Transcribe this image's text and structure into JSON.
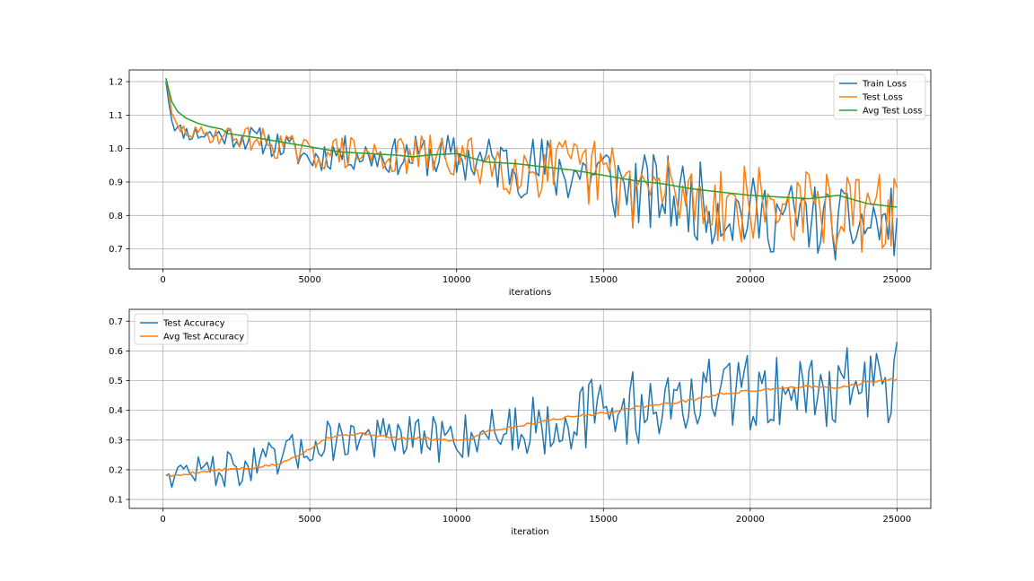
{
  "chart_data": [
    {
      "type": "line",
      "xlabel": "iterations",
      "ylabel": "",
      "xlim": [
        -1150,
        26150
      ],
      "ylim": [
        0.64,
        1.235
      ],
      "xticks": [
        0,
        5000,
        10000,
        15000,
        20000,
        25000
      ],
      "yticks": [
        0.7,
        0.8,
        0.9,
        1.0,
        1.1,
        1.2
      ],
      "grid": true,
      "legend_position": "top-right",
      "series": [
        {
          "name": "Train Loss",
          "color": "#1f77b4",
          "noise_seed": 11,
          "noise_amp": [
            [
              100,
              0.015
            ],
            [
              3500,
              0.03
            ],
            [
              8000,
              0.04
            ],
            [
              15400,
              0.09
            ],
            [
              25000,
              0.075
            ]
          ],
          "x": [
            100,
            300,
            500,
            1000,
            2000,
            3000,
            4000,
            5000,
            6000,
            7000,
            8000,
            9000,
            10000,
            11000,
            12000,
            13000,
            14000,
            15000,
            16000,
            17000,
            18000,
            19000,
            20000,
            21000,
            22000,
            23000,
            24000,
            25000
          ],
          "y": [
            1.2,
            1.09,
            1.055,
            1.045,
            1.04,
            1.03,
            1.01,
            0.97,
            0.99,
            0.98,
            0.975,
            0.98,
            0.97,
            0.96,
            0.95,
            0.94,
            0.93,
            0.92,
            0.87,
            0.86,
            0.85,
            0.82,
            0.8,
            0.8,
            0.79,
            0.77,
            0.77,
            0.78
          ]
        },
        {
          "name": "Test Loss",
          "color": "#ff7f0e",
          "noise_seed": 29,
          "noise_amp": [
            [
              100,
              0.01
            ],
            [
              3500,
              0.03
            ],
            [
              8000,
              0.04
            ],
            [
              15400,
              0.085
            ],
            [
              25000,
              0.085
            ]
          ],
          "x": [
            100,
            300,
            500,
            1000,
            2000,
            3000,
            4000,
            5000,
            6000,
            7000,
            8000,
            9000,
            10000,
            11000,
            12000,
            13000,
            14000,
            15000,
            16000,
            17000,
            18000,
            19000,
            20000,
            21000,
            22000,
            23000,
            24000,
            25000
          ],
          "y": [
            1.21,
            1.1,
            1.06,
            1.045,
            1.04,
            1.03,
            1.01,
            0.98,
            0.99,
            0.98,
            0.975,
            0.98,
            0.97,
            0.96,
            0.95,
            0.94,
            0.93,
            0.92,
            0.88,
            0.87,
            0.86,
            0.84,
            0.83,
            0.83,
            0.82,
            0.81,
            0.8,
            0.82
          ]
        },
        {
          "name": "Avg Test Loss",
          "color": "#2ca02c",
          "x": [
            100,
            300,
            500,
            800,
            1200,
            1600,
            2000,
            2200,
            3000,
            4000,
            5000,
            6000,
            7000,
            8000,
            8500,
            9000,
            10000,
            11000,
            12000,
            13000,
            14000,
            15000,
            16000,
            17000,
            18000,
            19000,
            20000,
            21000,
            22000,
            23000,
            24000,
            25000
          ],
          "y": [
            1.21,
            1.14,
            1.11,
            1.09,
            1.075,
            1.065,
            1.058,
            1.045,
            1.035,
            1.02,
            1.005,
            0.99,
            0.985,
            0.98,
            0.975,
            0.98,
            0.985,
            0.96,
            0.955,
            0.945,
            0.935,
            0.92,
            0.905,
            0.895,
            0.88,
            0.87,
            0.86,
            0.855,
            0.85,
            0.86,
            0.835,
            0.825
          ]
        }
      ]
    },
    {
      "type": "line",
      "xlabel": "iteration",
      "ylabel": "",
      "xlim": [
        -1150,
        26150
      ],
      "ylim": [
        0.07,
        0.74
      ],
      "xticks": [
        0,
        5000,
        10000,
        15000,
        20000,
        25000
      ],
      "yticks": [
        0.1,
        0.2,
        0.3,
        0.4,
        0.5,
        0.6,
        0.7
      ],
      "grid": true,
      "legend_position": "top-left",
      "series": [
        {
          "name": "Test Accuracy",
          "color": "#1f77b4",
          "noise_seed": 47,
          "noise_amp": [
            [
              100,
              0.03
            ],
            [
              3500,
              0.05
            ],
            [
              10000,
              0.06
            ],
            [
              15000,
              0.09
            ],
            [
              25000,
              0.1
            ]
          ],
          "x": [
            100,
            1000,
            2000,
            3000,
            4000,
            5000,
            6000,
            7000,
            8000,
            9000,
            10000,
            11000,
            12000,
            13000,
            14000,
            15000,
            16000,
            17000,
            18000,
            19000,
            20000,
            21000,
            22000,
            23000,
            24000,
            25000
          ],
          "y": [
            0.18,
            0.2,
            0.2,
            0.21,
            0.23,
            0.28,
            0.31,
            0.31,
            0.3,
            0.3,
            0.31,
            0.33,
            0.34,
            0.36,
            0.38,
            0.39,
            0.41,
            0.42,
            0.44,
            0.45,
            0.46,
            0.47,
            0.47,
            0.48,
            0.49,
            0.5
          ]
        },
        {
          "name": "Avg Test Accuracy",
          "color": "#ff7f0e",
          "noise_seed": 5,
          "noise_amp": [
            [
              100,
              0.003
            ],
            [
              25000,
              0.003
            ]
          ],
          "x": [
            100,
            500,
            1000,
            2000,
            3000,
            4000,
            5000,
            5500,
            6000,
            6500,
            7000,
            8000,
            9000,
            9500,
            10000,
            10500,
            11000,
            12000,
            13000,
            14000,
            15000,
            16000,
            17000,
            18000,
            19000,
            20000,
            21000,
            22000,
            23000,
            24000,
            25000
          ],
          "y": [
            0.18,
            0.18,
            0.19,
            0.2,
            0.205,
            0.22,
            0.27,
            0.305,
            0.315,
            0.32,
            0.32,
            0.305,
            0.305,
            0.3,
            0.3,
            0.305,
            0.33,
            0.345,
            0.365,
            0.38,
            0.39,
            0.41,
            0.42,
            0.435,
            0.455,
            0.465,
            0.475,
            0.48,
            0.475,
            0.495,
            0.505
          ]
        }
      ]
    }
  ]
}
